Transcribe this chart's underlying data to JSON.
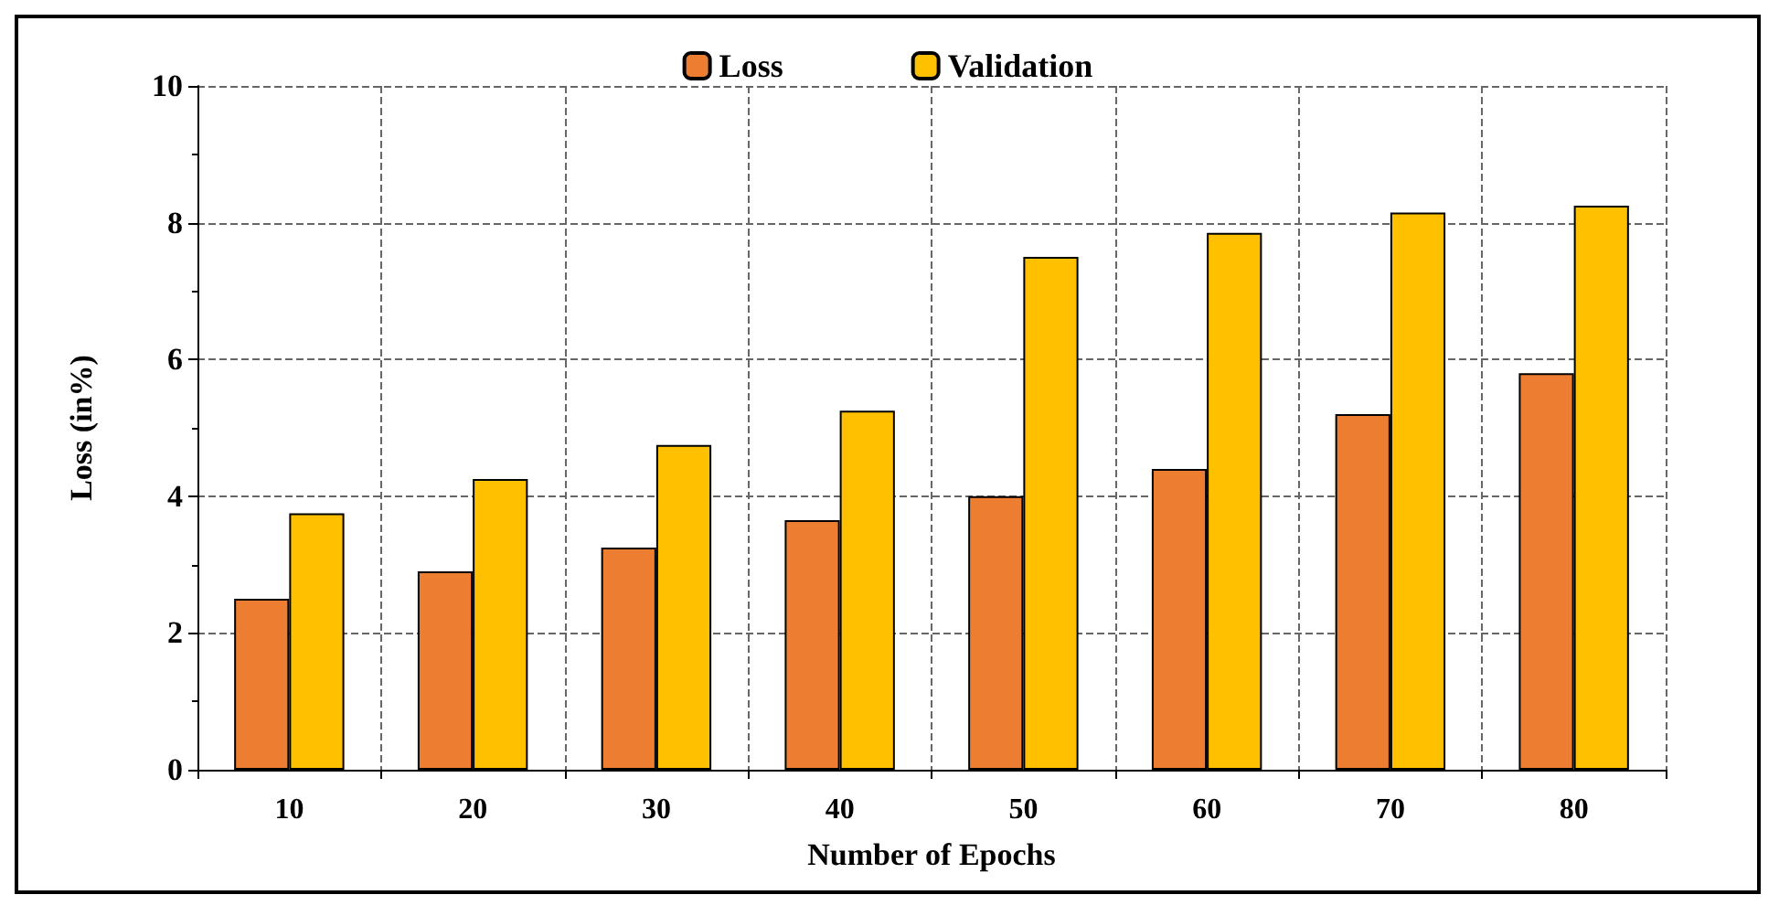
{
  "chart_data": {
    "type": "bar",
    "xlabel": "Number of Epochs",
    "ylabel": "Loss (in%)",
    "categories": [
      "10",
      "20",
      "30",
      "40",
      "50",
      "60",
      "70",
      "80"
    ],
    "series": [
      {
        "name": "Loss",
        "color": "#ed7d31",
        "values": [
          2.5,
          2.9,
          3.25,
          3.65,
          4.0,
          4.4,
          5.2,
          5.8
        ]
      },
      {
        "name": "Validation",
        "color": "#ffc000",
        "values": [
          3.75,
          4.25,
          4.75,
          5.25,
          7.5,
          7.85,
          8.15,
          8.25
        ]
      }
    ],
    "ylim": [
      0,
      10
    ],
    "yticks": [
      0,
      2,
      4,
      6,
      8,
      10
    ],
    "grid": true,
    "legend": "top"
  }
}
